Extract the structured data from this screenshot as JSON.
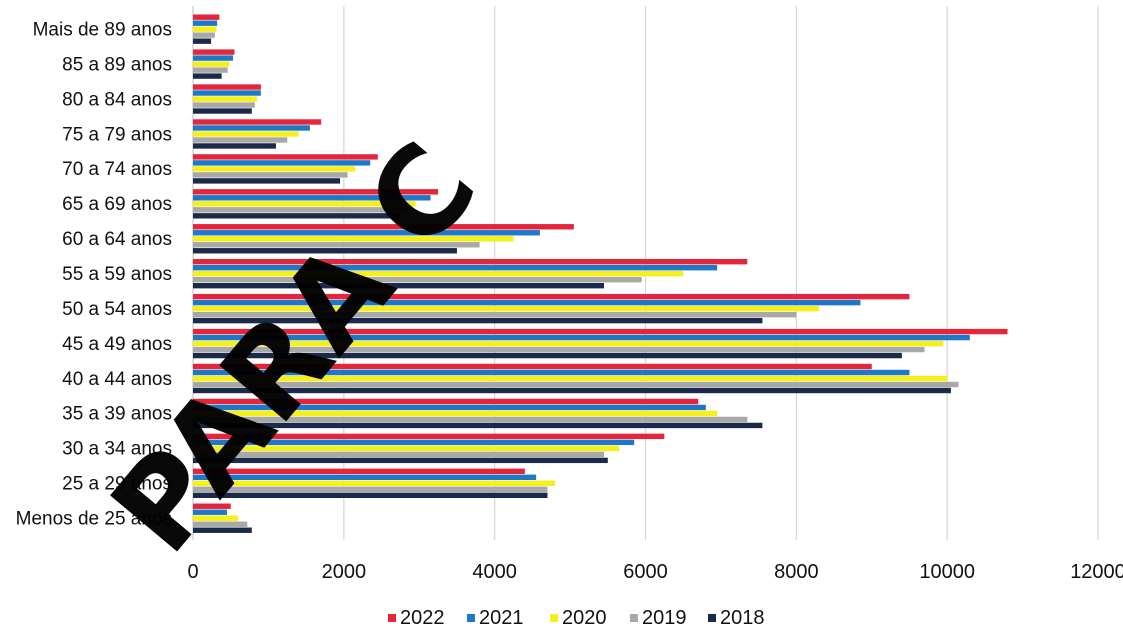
{
  "chart_data": {
    "type": "bar",
    "orientation": "horizontal",
    "title": "",
    "categories": [
      "Mais de 89 anos",
      "85 a 89 anos",
      "80 a 84 anos",
      "75 a 79 anos",
      "70 a 74 anos",
      "65 a 69 anos",
      "60 a 64 anos",
      "55 a 59 anos",
      "50 a 54 anos",
      "45 a 49 anos",
      "40 a 44 anos",
      "35 a 39 anos",
      "30 a 34 anos",
      "25 a 29 anos",
      "Menos de 25 anos"
    ],
    "series": [
      {
        "name": "2022",
        "color": "#e3263b",
        "values": [
          350,
          550,
          900,
          1700,
          2450,
          3250,
          5050,
          7350,
          9500,
          10800,
          9000,
          6700,
          6250,
          4400,
          500
        ]
      },
      {
        "name": "2021",
        "color": "#1f77c8",
        "values": [
          320,
          530,
          900,
          1550,
          2350,
          3150,
          4600,
          6950,
          8850,
          10300,
          9500,
          6800,
          5850,
          4550,
          450
        ]
      },
      {
        "name": "2020",
        "color": "#f5ef1c",
        "values": [
          310,
          480,
          850,
          1400,
          2150,
          2950,
          4250,
          6500,
          8300,
          9950,
          10000,
          6950,
          5650,
          4800,
          600
        ]
      },
      {
        "name": "2019",
        "color": "#a8a8a8",
        "values": [
          290,
          460,
          820,
          1250,
          2050,
          2850,
          3800,
          5950,
          8000,
          9700,
          10150,
          7350,
          5450,
          4700,
          720
        ]
      },
      {
        "name": "2018",
        "color": "#1c2a4a",
        "values": [
          240,
          380,
          780,
          1100,
          1950,
          2750,
          3500,
          5450,
          7550,
          9400,
          10050,
          7550,
          5500,
          4700,
          780
        ]
      }
    ],
    "xlim": [
      0,
      12000
    ],
    "xticks": [
      "0",
      "2000",
      "4000",
      "6000",
      "8000",
      "10000",
      "12000"
    ],
    "grid": true,
    "legend_position": "bottom",
    "watermark": "PARA C"
  }
}
